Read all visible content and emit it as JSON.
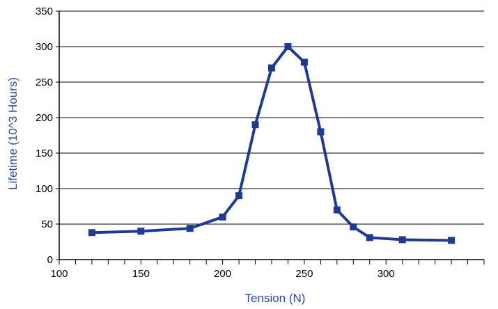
{
  "chart_data": {
    "type": "line",
    "title": "",
    "xlabel": "Tension (N)",
    "ylabel": "Lifetime (10^3 Hours)",
    "xlim": [
      100,
      360
    ],
    "ylim": [
      0,
      350
    ],
    "x_ticks": [
      100,
      150,
      200,
      250,
      300
    ],
    "x_tick_labels": [
      "100",
      "150",
      "200",
      "250",
      "300"
    ],
    "x_minor_step": 10,
    "y_ticks": [
      0,
      50,
      100,
      150,
      200,
      250,
      300,
      350
    ],
    "y_tick_labels": [
      "0",
      "50",
      "100",
      "150",
      "200",
      "250",
      "300",
      "350"
    ],
    "grid": "horizontal",
    "legend": "none",
    "series": [
      {
        "color": "#1f3a93",
        "marker": "square",
        "points": [
          {
            "x": 120,
            "y": 38
          },
          {
            "x": 150,
            "y": 40
          },
          {
            "x": 180,
            "y": 44
          },
          {
            "x": 200,
            "y": 60
          },
          {
            "x": 210,
            "y": 90
          },
          {
            "x": 220,
            "y": 190
          },
          {
            "x": 230,
            "y": 270
          },
          {
            "x": 240,
            "y": 300
          },
          {
            "x": 250,
            "y": 278
          },
          {
            "x": 260,
            "y": 180
          },
          {
            "x": 270,
            "y": 70
          },
          {
            "x": 280,
            "y": 46
          },
          {
            "x": 290,
            "y": 31
          },
          {
            "x": 310,
            "y": 28
          },
          {
            "x": 340,
            "y": 27
          }
        ]
      }
    ],
    "colors": {
      "axis_title": "#2a4aa0",
      "axis": "#000000",
      "grid": "#000000"
    }
  }
}
